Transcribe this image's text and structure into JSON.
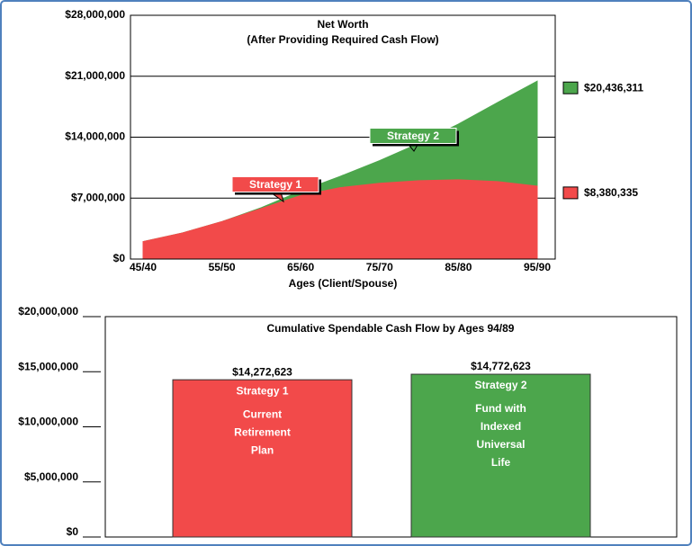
{
  "chart_data": [
    {
      "type": "area",
      "title": "Net Worth",
      "subtitle": "(After Providing Required Cash Flow)",
      "x_label": "Ages (Client/Spouse)",
      "categories": [
        "45/40",
        null,
        "55/50",
        null,
        "65/60",
        null,
        "75/70",
        null,
        "85/80",
        null,
        "95/90"
      ],
      "series": [
        {
          "name": "Strategy 2",
          "color": "#4ca64c",
          "values": [
            2000000,
            3000000,
            4300000,
            5900000,
            7800000,
            9500000,
            11300000,
            13300000,
            15500000,
            18000000,
            20436311
          ],
          "end_label": "$20,436,311"
        },
        {
          "name": "Strategy 1",
          "color": "#f24a4a",
          "values": [
            2000000,
            3000000,
            4300000,
            5800000,
            7300000,
            8200000,
            8700000,
            9000000,
            9100000,
            8900000,
            8380335
          ],
          "end_label": "$8,380,335"
        }
      ],
      "ylim": [
        0,
        28000000
      ],
      "yticks": [
        {
          "value": 0,
          "label": "$0"
        },
        {
          "value": 7000000,
          "label": "$7,000,000"
        },
        {
          "value": 14000000,
          "label": "$14,000,000"
        },
        {
          "value": 21000000,
          "label": "$21,000,000"
        },
        {
          "value": 28000000,
          "label": "$28,000,000"
        }
      ],
      "grid": true
    },
    {
      "type": "bar",
      "title": "Cumulative Spendable Cash Flow by Ages 94/89",
      "categories": [
        "Strategy 1",
        "Strategy 2"
      ],
      "descriptions": [
        [
          "Current",
          "Retirement",
          "Plan"
        ],
        [
          "Fund with",
          "Indexed",
          "Universal",
          "Life"
        ]
      ],
      "values": [
        14272623,
        14772623
      ],
      "value_labels": [
        "$14,272,623",
        "$14,772,623"
      ],
      "colors": [
        "#f24a4a",
        "#4ca64c"
      ],
      "ylim": [
        0,
        20000000
      ],
      "yticks": [
        {
          "value": 0,
          "label": "$0"
        },
        {
          "value": 5000000,
          "label": "$5,000,000"
        },
        {
          "value": 10000000,
          "label": "$10,000,000"
        },
        {
          "value": 15000000,
          "label": "$15,000,000"
        },
        {
          "value": 20000000,
          "label": "$20,000,000"
        }
      ]
    }
  ]
}
